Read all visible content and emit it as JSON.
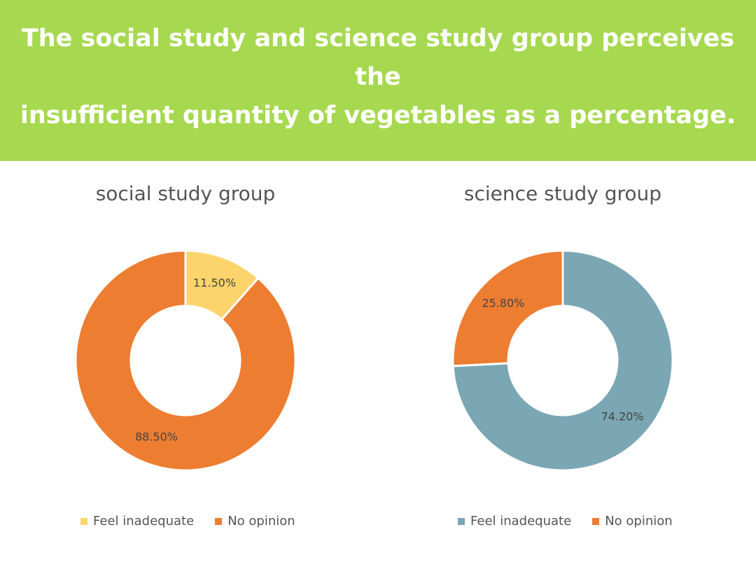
{
  "banner": {
    "title_line1": "The social study and science study group perceives the",
    "title_line2": "insufficient quantity of vegetables as a percentage."
  },
  "chart_data": [
    {
      "type": "pie",
      "title": "social study group",
      "categories": [
        "Feel inadequate",
        "No opinion"
      ],
      "values": [
        11.5,
        88.5
      ],
      "labels": [
        "11.50%",
        "88.50%"
      ],
      "colors": [
        "#fdd46c",
        "#ed7d31"
      ],
      "legend_position": "bottom",
      "donut": true
    },
    {
      "type": "pie",
      "title": "science study group",
      "categories": [
        "Feel inadequate",
        "No opinion"
      ],
      "values": [
        74.2,
        25.8
      ],
      "labels": [
        "74.20%",
        "25.80%"
      ],
      "colors": [
        "#7aa7b3",
        "#ed7d31"
      ],
      "legend_position": "bottom",
      "donut": true
    }
  ]
}
